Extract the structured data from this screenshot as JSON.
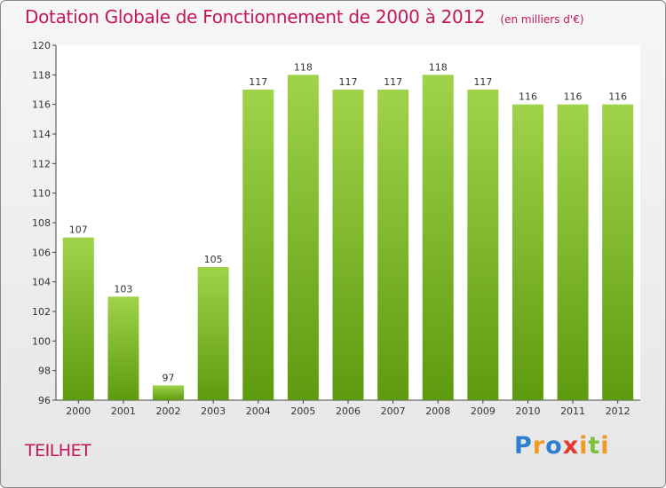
{
  "header": {
    "title": "Dotation Globale de Fonctionnement de 2000 à 2012",
    "subtitle": "(en milliers d'€)"
  },
  "footer": {
    "commune": "TEILHET",
    "logo_text": "Proxiti"
  },
  "colors": {
    "title": "#c2185b",
    "bar_top": "#9fd34a",
    "bar_bottom": "#5e9a0f"
  },
  "chart_data": {
    "type": "bar",
    "categories": [
      "2000",
      "2001",
      "2002",
      "2003",
      "2004",
      "2005",
      "2006",
      "2007",
      "2008",
      "2009",
      "2010",
      "2011",
      "2012"
    ],
    "values": [
      107,
      103,
      97,
      105,
      117,
      118,
      117,
      117,
      118,
      117,
      116,
      116,
      116
    ],
    "ylim": [
      96,
      120
    ],
    "yticks": [
      96,
      98,
      100,
      102,
      104,
      106,
      108,
      110,
      112,
      114,
      116,
      118,
      120
    ],
    "grid": false,
    "data_labels": true
  }
}
